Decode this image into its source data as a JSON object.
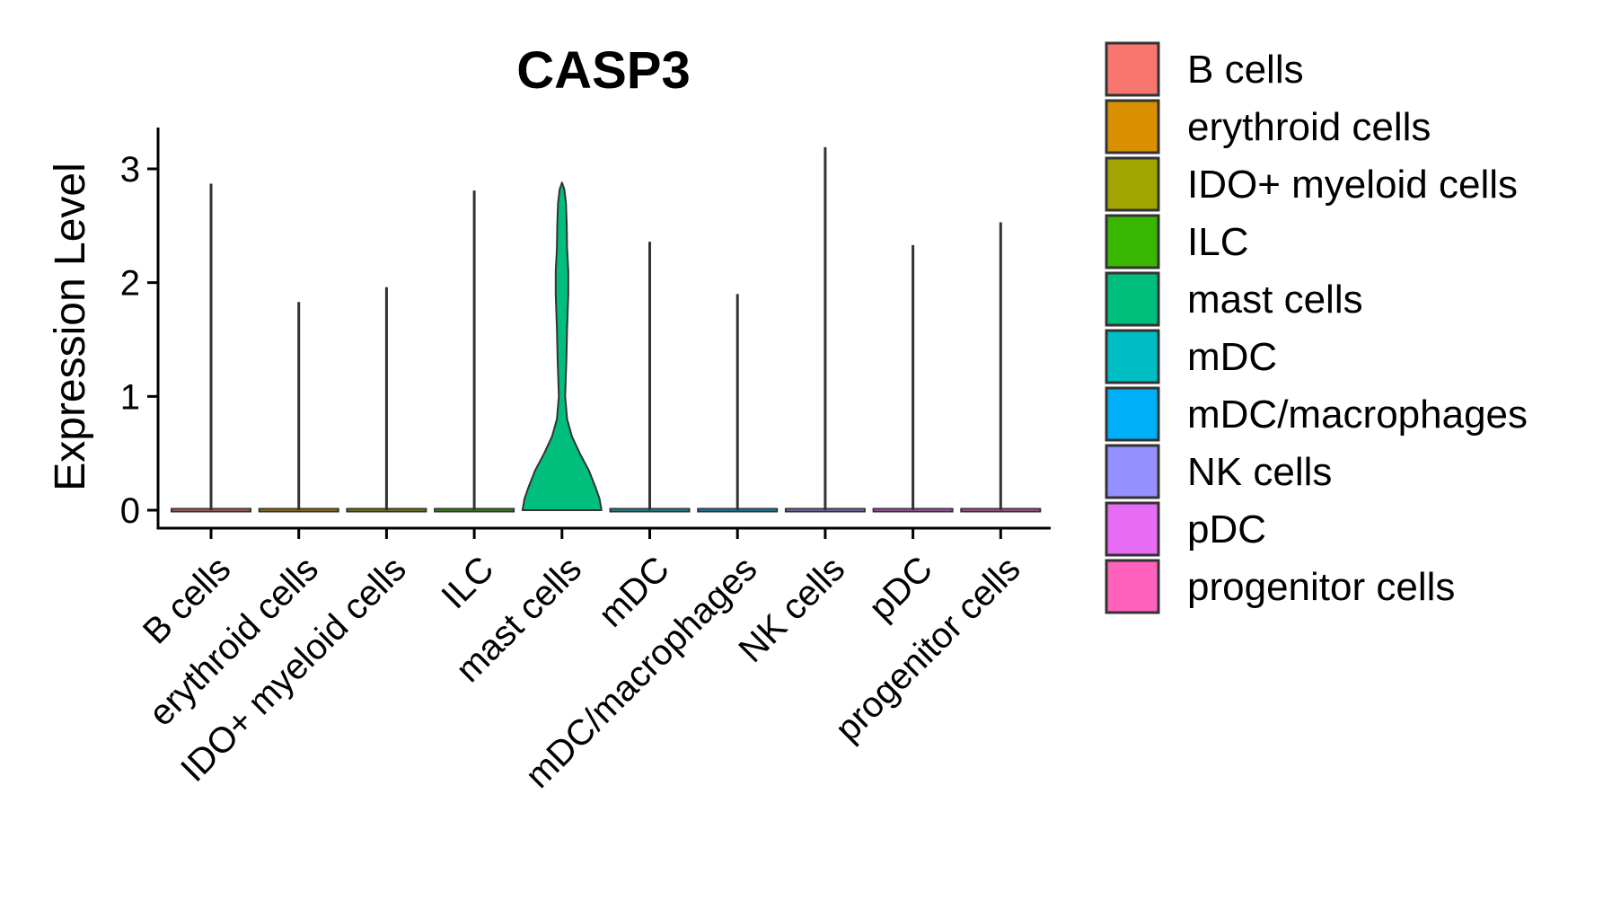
{
  "chart_data": {
    "type": "violin",
    "title": "CASP3",
    "xlabel": "",
    "ylabel": "Expression Level",
    "ylim": [
      -0.15,
      3.35
    ],
    "yticks": [
      0,
      1,
      2,
      3
    ],
    "categories": [
      "B cells",
      "erythroid cells",
      "IDO+ myeloid cells",
      "ILC",
      "mast cells",
      "mDC",
      "mDC/macrophages",
      "NK cells",
      "pDC",
      "progenitor cells"
    ],
    "colors": [
      "#F8766D",
      "#D89000",
      "#A3A500",
      "#39B600",
      "#00BF7D",
      "#00BFC4",
      "#00B0F6",
      "#9590FF",
      "#E76BF3",
      "#FF62BC"
    ],
    "max_values": [
      2.87,
      1.83,
      1.96,
      2.81,
      2.88,
      2.36,
      1.9,
      3.19,
      2.33,
      2.53
    ],
    "mast_cells_density": [
      {
        "y": 0.0,
        "w": 1.0
      },
      {
        "y": 0.1,
        "w": 0.95
      },
      {
        "y": 0.2,
        "w": 0.85
      },
      {
        "y": 0.35,
        "w": 0.68
      },
      {
        "y": 0.5,
        "w": 0.45
      },
      {
        "y": 0.65,
        "w": 0.25
      },
      {
        "y": 0.8,
        "w": 0.13
      },
      {
        "y": 1.0,
        "w": 0.08
      },
      {
        "y": 1.3,
        "w": 0.11
      },
      {
        "y": 1.6,
        "w": 0.13
      },
      {
        "y": 1.9,
        "w": 0.16
      },
      {
        "y": 2.1,
        "w": 0.16
      },
      {
        "y": 2.3,
        "w": 0.13
      },
      {
        "y": 2.5,
        "w": 0.12
      },
      {
        "y": 2.7,
        "w": 0.1
      },
      {
        "y": 2.82,
        "w": 0.06
      },
      {
        "y": 2.88,
        "w": 0.0
      }
    ],
    "legend": {
      "position": "right",
      "labels": [
        "B cells",
        "erythroid cells",
        "IDO+ myeloid cells",
        "ILC",
        "mast cells",
        "mDC",
        "mDC/macrophages",
        "NK cells",
        "pDC",
        "progenitor cells"
      ]
    }
  }
}
